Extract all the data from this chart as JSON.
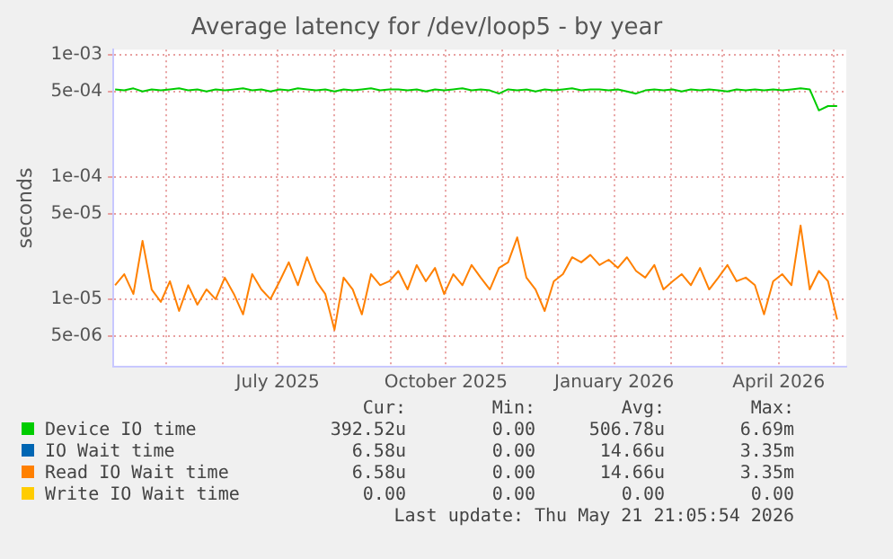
{
  "chart_data": {
    "type": "line",
    "title": "Average latency for /dev/loop5 - by year",
    "ylabel": "seconds",
    "x": [
      "2025-04-03",
      "2025-04-08",
      "2025-04-13",
      "2025-04-18",
      "2025-04-23",
      "2025-04-28",
      "2025-05-03",
      "2025-05-08",
      "2025-05-13",
      "2025-05-18",
      "2025-05-23",
      "2025-05-28",
      "2025-06-02",
      "2025-06-07",
      "2025-06-12",
      "2025-06-17",
      "2025-06-22",
      "2025-06-27",
      "2025-07-02",
      "2025-07-07",
      "2025-07-12",
      "2025-07-17",
      "2025-07-22",
      "2025-07-27",
      "2025-08-01",
      "2025-08-06",
      "2025-08-11",
      "2025-08-16",
      "2025-08-21",
      "2025-08-26",
      "2025-08-31",
      "2025-09-05",
      "2025-09-10",
      "2025-09-15",
      "2025-09-20",
      "2025-09-25",
      "2025-09-30",
      "2025-10-05",
      "2025-10-10",
      "2025-10-15",
      "2025-10-20",
      "2025-10-25",
      "2025-10-30",
      "2025-11-04",
      "2025-11-09",
      "2025-11-14",
      "2025-11-19",
      "2025-11-24",
      "2025-11-29",
      "2025-12-04",
      "2025-12-09",
      "2025-12-14",
      "2025-12-19",
      "2025-12-24",
      "2025-12-29",
      "2026-01-03",
      "2026-01-08",
      "2026-01-13",
      "2026-01-18",
      "2026-01-23",
      "2026-01-28",
      "2026-02-02",
      "2026-02-07",
      "2026-02-12",
      "2026-02-17",
      "2026-02-22",
      "2026-02-27",
      "2026-03-04",
      "2026-03-09",
      "2026-03-14",
      "2026-03-19",
      "2026-03-24",
      "2026-03-29",
      "2026-04-03",
      "2026-04-08",
      "2026-04-13",
      "2026-04-18",
      "2026-04-23",
      "2026-04-28",
      "2026-05-03"
    ],
    "series": [
      {
        "name": "Device IO time",
        "color": "#00cc00",
        "values": [
          0.00052,
          0.00051,
          0.00053,
          0.0005,
          0.00052,
          0.00051,
          0.00052,
          0.00053,
          0.00051,
          0.00052,
          0.0005,
          0.00052,
          0.00051,
          0.00052,
          0.00053,
          0.00051,
          0.00052,
          0.0005,
          0.00052,
          0.00051,
          0.00053,
          0.00052,
          0.00051,
          0.00052,
          0.0005,
          0.00052,
          0.00051,
          0.00052,
          0.00053,
          0.00051,
          0.00052,
          0.00052,
          0.00051,
          0.00052,
          0.0005,
          0.00052,
          0.00051,
          0.00052,
          0.00053,
          0.00051,
          0.00052,
          0.00051,
          0.00048,
          0.00052,
          0.00051,
          0.00052,
          0.0005,
          0.00052,
          0.00051,
          0.00052,
          0.00053,
          0.00051,
          0.00052,
          0.00052,
          0.00051,
          0.00052,
          0.0005,
          0.00048,
          0.00051,
          0.00052,
          0.00051,
          0.00052,
          0.0005,
          0.00052,
          0.00051,
          0.00052,
          0.00051,
          0.0005,
          0.00052,
          0.00051,
          0.00052,
          0.00051,
          0.00052,
          0.00051,
          0.00052,
          0.00053,
          0.00052,
          0.00035,
          0.00038,
          0.00038
        ]
      },
      {
        "name": "IO Wait time",
        "color": "#0066b3",
        "values": [
          null,
          null,
          null,
          null,
          null,
          null,
          null,
          null,
          null,
          null,
          null,
          null,
          null,
          null,
          null,
          null,
          null,
          null,
          null,
          null,
          null,
          null,
          null,
          null,
          null,
          null,
          null,
          null,
          null,
          null,
          null,
          null,
          null,
          null,
          null,
          null,
          null,
          null,
          null,
          null,
          null,
          null,
          null,
          null,
          null,
          null,
          null,
          null,
          null,
          null,
          null,
          null,
          null,
          null,
          null,
          null,
          null,
          null,
          null,
          null,
          null,
          null,
          null,
          null,
          null,
          null,
          null,
          null,
          null,
          null,
          null,
          null,
          null,
          null,
          null,
          null,
          null,
          null,
          null,
          null
        ]
      },
      {
        "name": "Read IO Wait time",
        "color": "#ff8000",
        "values": [
          1.3e-05,
          1.6e-05,
          1.1e-05,
          3e-05,
          1.2e-05,
          9.5e-06,
          1.4e-05,
          8e-06,
          1.3e-05,
          9e-06,
          1.2e-05,
          1e-05,
          1.5e-05,
          1.1e-05,
          7.5e-06,
          1.6e-05,
          1.2e-05,
          1e-05,
          1.4e-05,
          2e-05,
          1.3e-05,
          2.2e-05,
          1.4e-05,
          1.1e-05,
          5.6e-06,
          1.5e-05,
          1.2e-05,
          7.5e-06,
          1.6e-05,
          1.3e-05,
          1.4e-05,
          1.7e-05,
          1.2e-05,
          1.9e-05,
          1.4e-05,
          1.8e-05,
          1.1e-05,
          1.6e-05,
          1.3e-05,
          1.9e-05,
          1.5e-05,
          1.2e-05,
          1.8e-05,
          2e-05,
          3.2e-05,
          1.5e-05,
          1.2e-05,
          8e-06,
          1.4e-05,
          1.6e-05,
          2.2e-05,
          2e-05,
          2.3e-05,
          1.9e-05,
          2.1e-05,
          1.8e-05,
          2.2e-05,
          1.7e-05,
          1.5e-05,
          1.9e-05,
          1.2e-05,
          1.4e-05,
          1.6e-05,
          1.3e-05,
          1.8e-05,
          1.2e-05,
          1.5e-05,
          1.9e-05,
          1.4e-05,
          1.5e-05,
          1.3e-05,
          7.5e-06,
          1.4e-05,
          1.6e-05,
          1.3e-05,
          4e-05,
          1.2e-05,
          1.7e-05,
          1.4e-05,
          6.8e-06
        ]
      },
      {
        "name": "Write IO Wait time",
        "color": "#ffcc00",
        "values": [
          null,
          null,
          null,
          null,
          null,
          null,
          null,
          null,
          null,
          null,
          null,
          null,
          null,
          null,
          null,
          null,
          null,
          null,
          null,
          null,
          null,
          null,
          null,
          null,
          null,
          null,
          null,
          null,
          null,
          null,
          null,
          null,
          null,
          null,
          null,
          null,
          null,
          null,
          null,
          null,
          null,
          null,
          null,
          null,
          null,
          null,
          null,
          null,
          null,
          null,
          null,
          null,
          null,
          null,
          null,
          null,
          null,
          null,
          null,
          null,
          null,
          null,
          null,
          null,
          null,
          null,
          null,
          null,
          null,
          null,
          null,
          null,
          null,
          null,
          null,
          null,
          null,
          null,
          null,
          null
        ]
      }
    ],
    "xlim": [
      "2025-04-02",
      "2026-05-08"
    ],
    "xticks": [
      {
        "value": "2025-05-01",
        "label": null
      },
      {
        "value": "2025-06-01",
        "label": null
      },
      {
        "value": "2025-07-01",
        "label": "July 2025"
      },
      {
        "value": "2025-08-01",
        "label": null
      },
      {
        "value": "2025-09-01",
        "label": null
      },
      {
        "value": "2025-10-01",
        "label": "October 2025"
      },
      {
        "value": "2025-11-01",
        "label": null
      },
      {
        "value": "2025-12-01",
        "label": null
      },
      {
        "value": "2026-01-01",
        "label": "January 2026"
      },
      {
        "value": "2026-02-01",
        "label": null
      },
      {
        "value": "2026-03-01",
        "label": null
      },
      {
        "value": "2026-04-01",
        "label": "April 2026"
      },
      {
        "value": "2026-05-01",
        "label": null
      }
    ],
    "ylim": [
      2.8e-06,
      0.0011
    ],
    "yticks": [
      {
        "value": 5e-06,
        "label": "5e-06"
      },
      {
        "value": 1e-05,
        "label": "1e-05"
      },
      {
        "value": 5e-05,
        "label": "5e-05"
      },
      {
        "value": 0.0001,
        "label": "1e-04"
      },
      {
        "value": 0.0005,
        "label": "5e-04"
      },
      {
        "value": 0.001,
        "label": "1e-03"
      }
    ],
    "log": "y",
    "grid": true,
    "legend": "bottom",
    "annotations": [
      "Cur:",
      "Min:",
      "Avg:",
      "Max:",
      "392.52u",
      "0.00",
      "506.78u",
      "6.69m",
      "6.58u",
      "0.00",
      "14.66u",
      "3.35m",
      "6.58u",
      "0.00",
      "14.66u",
      "3.35m",
      "0.00",
      "0.00",
      "0.00",
      "0.00",
      "Last update: Thu May 21 21:05:54 2026"
    ]
  }
}
